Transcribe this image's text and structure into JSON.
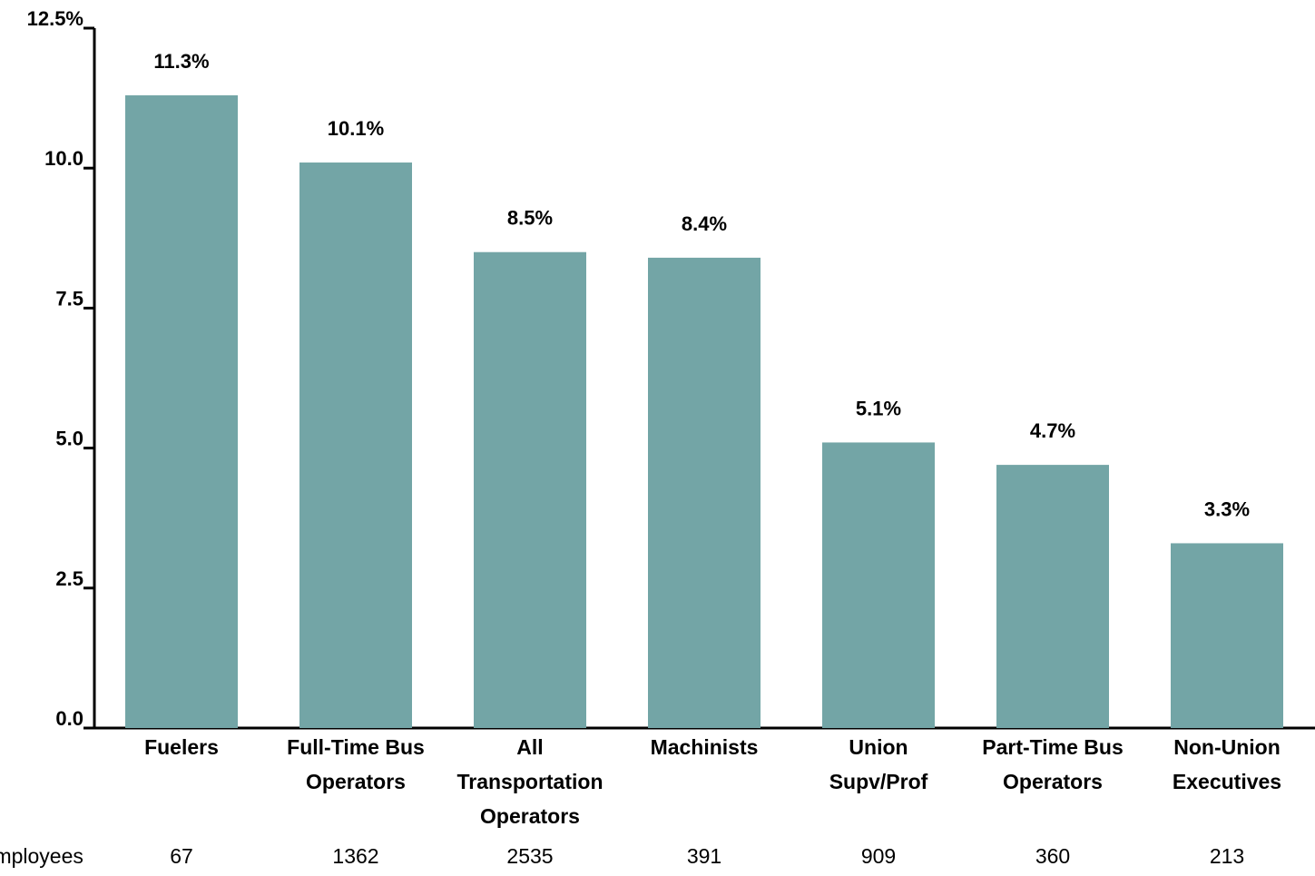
{
  "chart_data": {
    "type": "bar",
    "categories": [
      "Fuelers",
      "Full-Time Bus\nOperators",
      "All\nTransportation\nOperators",
      "Machinists",
      "Union\nSupv/Prof",
      "Part-Time Bus\nOperators",
      "Non-Union\nExecutives"
    ],
    "values": [
      11.3,
      10.1,
      8.5,
      8.4,
      5.1,
      4.7,
      3.3
    ],
    "value_labels": [
      "11.3%",
      "10.1%",
      "8.5%",
      "8.4%",
      "5.1%",
      "4.7%",
      "3.3%"
    ],
    "color": "#73a5a6",
    "ylim": [
      0,
      12.5
    ],
    "yticks": [
      {
        "value": 0,
        "label": "0.0"
      },
      2.5,
      {
        "value": 5,
        "label": "5.0"
      },
      7.5,
      {
        "value": 10,
        "label": "10.0"
      },
      {
        "value": 12.5,
        "label": "12.5%"
      }
    ],
    "grid": false,
    "employees": {
      "label": "Employees",
      "values": [
        67,
        1362,
        2535,
        391,
        909,
        360,
        213
      ]
    }
  }
}
